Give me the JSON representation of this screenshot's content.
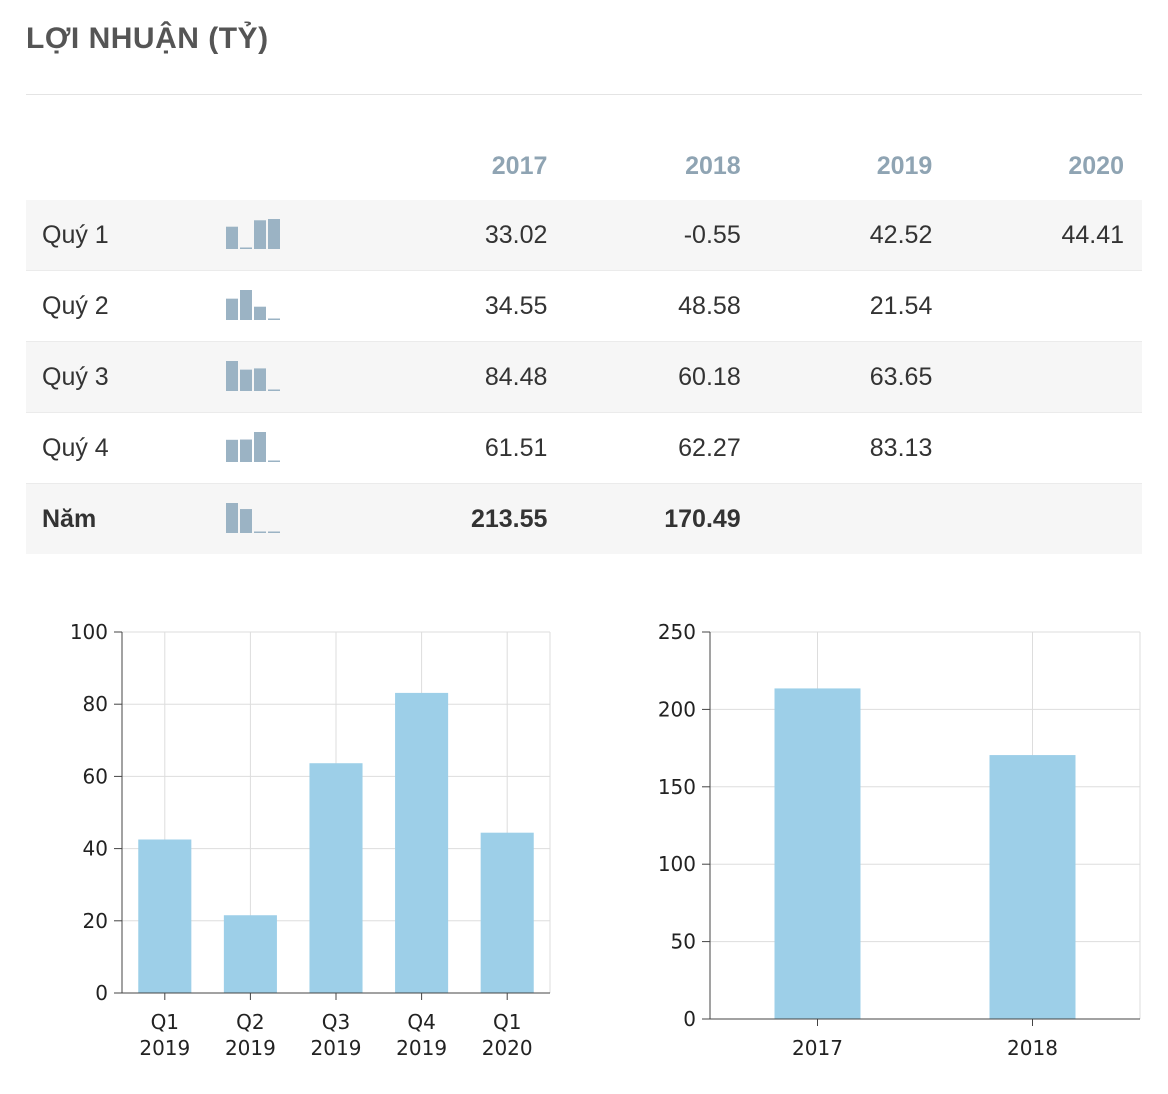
{
  "title": "LỢI NHUẬN (TỶ)",
  "table": {
    "columns": [
      "2017",
      "2018",
      "2019",
      "2020"
    ],
    "rows": [
      {
        "label": "Quý 1",
        "values": [
          "33.02",
          "-0.55",
          "42.52",
          "44.41"
        ],
        "spark": [
          33.02,
          -0.55,
          42.52,
          44.41
        ],
        "bold": false
      },
      {
        "label": "Quý 2",
        "values": [
          "34.55",
          "48.58",
          "21.54",
          ""
        ],
        "spark": [
          34.55,
          48.58,
          21.54,
          0
        ],
        "bold": false
      },
      {
        "label": "Quý 3",
        "values": [
          "84.48",
          "60.18",
          "63.65",
          ""
        ],
        "spark": [
          84.48,
          60.18,
          63.65,
          0
        ],
        "bold": false
      },
      {
        "label": "Quý 4",
        "values": [
          "61.51",
          "62.27",
          "83.13",
          ""
        ],
        "spark": [
          61.51,
          62.27,
          83.13,
          0
        ],
        "bold": false
      },
      {
        "label": "Năm",
        "values": [
          "213.55",
          "170.49",
          "",
          ""
        ],
        "spark": [
          213.55,
          170.49,
          0,
          0
        ],
        "bold": true
      }
    ]
  },
  "colors": {
    "bar": "#9dcfe8",
    "spark": "#9bb3c4",
    "header": "#8fa4b3"
  },
  "chart_data": [
    {
      "type": "bar",
      "categories": [
        "Q1\n2019",
        "Q2\n2019",
        "Q3\n2019",
        "Q4\n2019",
        "Q1\n2020"
      ],
      "values": [
        42.52,
        21.54,
        63.65,
        83.13,
        44.41
      ],
      "title": "",
      "xlabel": "",
      "ylabel": "",
      "ylim": [
        0,
        100
      ],
      "yticks": [
        0,
        20,
        40,
        60,
        80,
        100
      ],
      "grid": true
    },
    {
      "type": "bar",
      "categories": [
        "2017",
        "2018"
      ],
      "values": [
        213.55,
        170.49
      ],
      "title": "",
      "xlabel": "",
      "ylabel": "",
      "ylim": [
        0,
        250
      ],
      "yticks": [
        0,
        50,
        100,
        150,
        200,
        250
      ],
      "grid": true
    }
  ]
}
